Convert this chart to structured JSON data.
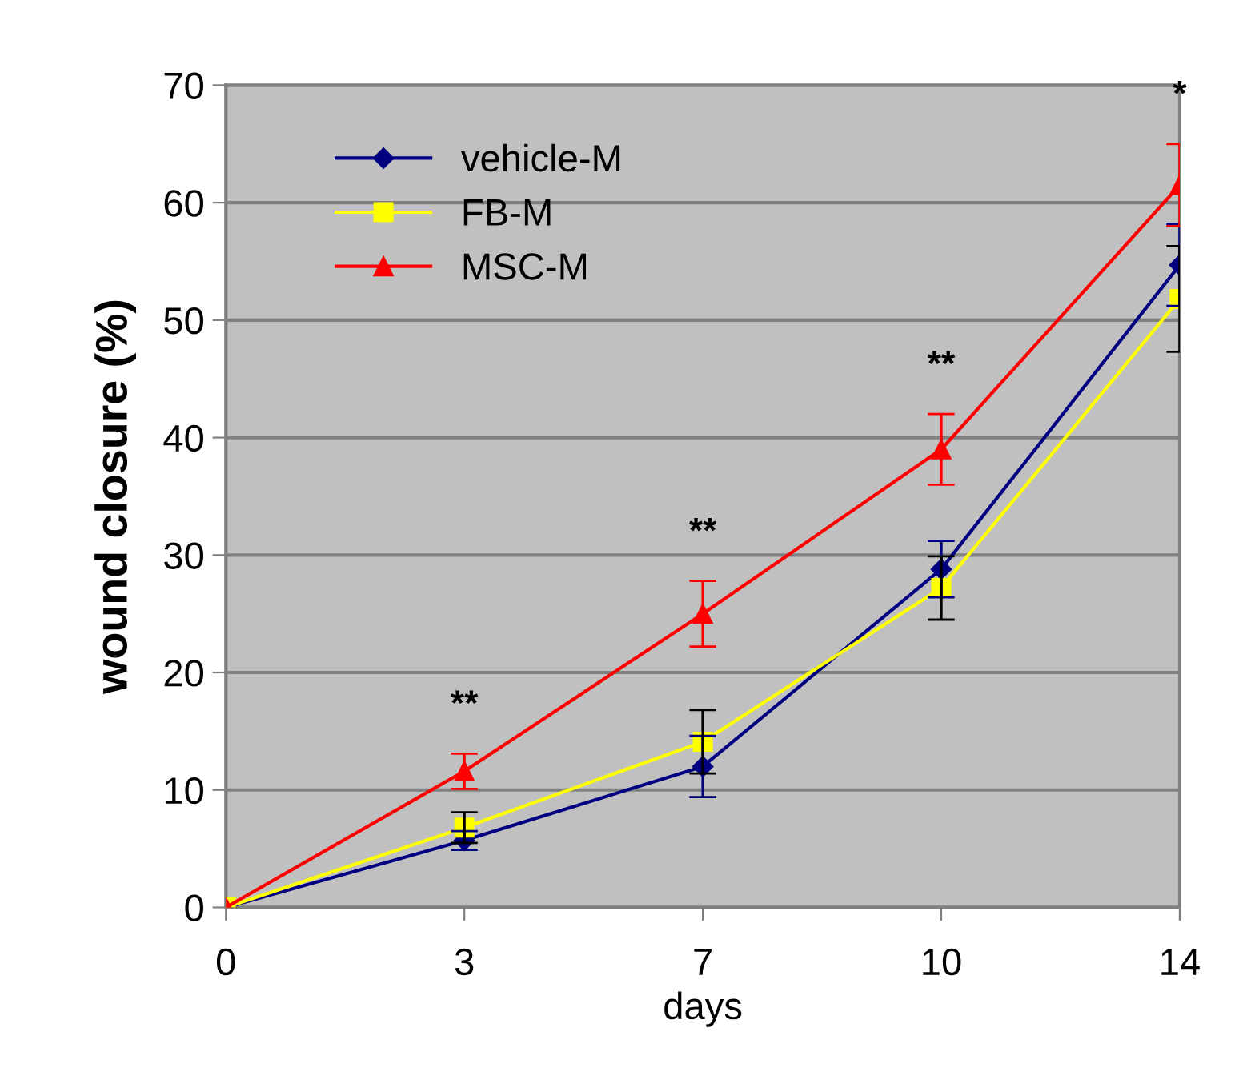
{
  "chart_data": {
    "type": "line",
    "xlabel": "days",
    "ylabel": "wound closure (%)",
    "categories": [
      "0",
      "3",
      "7",
      "10",
      "14"
    ],
    "series": [
      {
        "name": "vehicle-M",
        "color": "#000080",
        "marker": "diamond",
        "values": [
          0,
          5.7,
          12.0,
          28.8,
          54.7
        ],
        "errors": [
          null,
          0.8,
          2.6,
          2.4,
          3.5
        ]
      },
      {
        "name": "FB-M",
        "color": "#ffff00",
        "marker": "square",
        "values": [
          0,
          6.8,
          14.1,
          27.2,
          51.8
        ],
        "errors": [
          null,
          1.3,
          2.7,
          2.7,
          4.5
        ]
      },
      {
        "name": "MSC-M",
        "color": "#ff0000",
        "marker": "triangle",
        "values": [
          0,
          11.6,
          25.0,
          39.0,
          61.5
        ],
        "errors": [
          null,
          1.5,
          2.8,
          3.0,
          3.5
        ]
      }
    ],
    "ylim": [
      0,
      70
    ],
    "yticks": [
      0,
      10,
      20,
      30,
      40,
      50,
      60,
      70
    ],
    "grid": "y",
    "legend": "top left",
    "annotations": [
      "**",
      "**",
      "**",
      "*"
    ]
  }
}
